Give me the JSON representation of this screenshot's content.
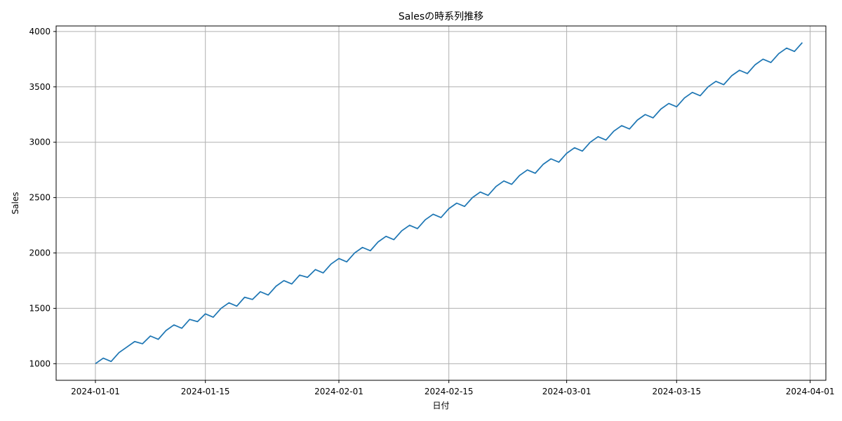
{
  "chart_data": {
    "type": "line",
    "title": "Salesの時系列推移",
    "xlabel": "日付",
    "ylabel": "Sales",
    "x_start": "2024-01-01",
    "x_end": "2024-03-30",
    "xlim": [
      "2023-12-27",
      "2024-04-03"
    ],
    "ylim": [
      850,
      4050
    ],
    "x_ticks": [
      "2024-01-01",
      "2024-01-15",
      "2024-02-01",
      "2024-02-15",
      "2024-03-01",
      "2024-03-15",
      "2024-04-01"
    ],
    "y_ticks": [
      1000,
      1500,
      2000,
      2500,
      3000,
      3500,
      4000
    ],
    "grid": true,
    "series": [
      {
        "color": "#1f77b4",
        "values": [
          1000,
          1050,
          1020,
          1100,
          1150,
          1200,
          1180,
          1250,
          1220,
          1300,
          1350,
          1320,
          1400,
          1380,
          1450,
          1420,
          1500,
          1550,
          1520,
          1600,
          1580,
          1650,
          1620,
          1700,
          1750,
          1720,
          1800,
          1780,
          1850,
          1820,
          1900,
          1950,
          1920,
          2000,
          2050,
          2020,
          2100,
          2150,
          2120,
          2200,
          2250,
          2220,
          2300,
          2350,
          2320,
          2400,
          2450,
          2420,
          2500,
          2550,
          2520,
          2600,
          2650,
          2620,
          2700,
          2750,
          2720,
          2800,
          2850,
          2820,
          2900,
          2950,
          2920,
          3000,
          3050,
          3020,
          3100,
          3150,
          3120,
          3200,
          3250,
          3220,
          3300,
          3350,
          3320,
          3400,
          3450,
          3420,
          3500,
          3550,
          3520,
          3600,
          3650,
          3620,
          3700,
          3750,
          3720,
          3800,
          3850,
          3820,
          3900
        ]
      }
    ]
  }
}
